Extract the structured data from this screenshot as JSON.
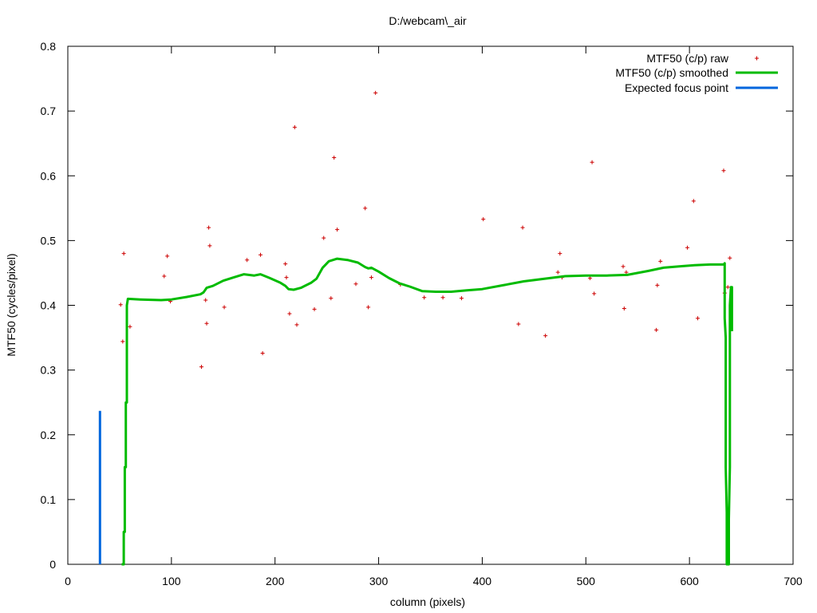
{
  "chart_data": {
    "type": "scatter",
    "title": "D:/webcam\\_air",
    "xlabel": "column (pixels)",
    "ylabel": "MTF50 (cycles/pixel)",
    "xlim": [
      0,
      700
    ],
    "ylim": [
      0,
      0.8
    ],
    "xticks": [
      0,
      100,
      200,
      300,
      400,
      500,
      600,
      700
    ],
    "yticks": [
      0,
      0.1,
      0.2,
      0.3,
      0.4,
      0.5,
      0.6,
      0.7,
      0.8
    ],
    "xtick_labels": [
      "0",
      "100",
      "200",
      "300",
      "400",
      "500",
      "600",
      "700"
    ],
    "ytick_labels": [
      "0",
      "0.1",
      "0.2",
      "0.3",
      "0.4",
      "0.5",
      "0.6",
      "0.7",
      "0.8"
    ],
    "grid": false,
    "legend_position": "top-right",
    "series": [
      {
        "name": "MTF50 (c/p) raw",
        "style": "points",
        "marker": "+",
        "color": "#cc0000",
        "points": [
          [
            51,
            0.401
          ],
          [
            53,
            0.344
          ],
          [
            54,
            0.48
          ],
          [
            60,
            0.367
          ],
          [
            93,
            0.445
          ],
          [
            96,
            0.476
          ],
          [
            99,
            0.406
          ],
          [
            129,
            0.305
          ],
          [
            133,
            0.408
          ],
          [
            134,
            0.372
          ],
          [
            136,
            0.52
          ],
          [
            137,
            0.492
          ],
          [
            151,
            0.397
          ],
          [
            173,
            0.47
          ],
          [
            186,
            0.478
          ],
          [
            188,
            0.326
          ],
          [
            210,
            0.464
          ],
          [
            211,
            0.443
          ],
          [
            214,
            0.387
          ],
          [
            219,
            0.675
          ],
          [
            221,
            0.37
          ],
          [
            238,
            0.394
          ],
          [
            247,
            0.504
          ],
          [
            254,
            0.411
          ],
          [
            257,
            0.628
          ],
          [
            260,
            0.517
          ],
          [
            278,
            0.433
          ],
          [
            287,
            0.55
          ],
          [
            290,
            0.397
          ],
          [
            293,
            0.443
          ],
          [
            297,
            0.728
          ],
          [
            321,
            0.432
          ],
          [
            344,
            0.412
          ],
          [
            362,
            0.412
          ],
          [
            380,
            0.411
          ],
          [
            401,
            0.533
          ],
          [
            435,
            0.371
          ],
          [
            439,
            0.52
          ],
          [
            461,
            0.353
          ],
          [
            473,
            0.451
          ],
          [
            475,
            0.48
          ],
          [
            477,
            0.443
          ],
          [
            504,
            0.442
          ],
          [
            506,
            0.621
          ],
          [
            508,
            0.418
          ],
          [
            536,
            0.46
          ],
          [
            537,
            0.395
          ],
          [
            539,
            0.451
          ],
          [
            568,
            0.362
          ],
          [
            569,
            0.431
          ],
          [
            572,
            0.468
          ],
          [
            598,
            0.489
          ],
          [
            604,
            0.561
          ],
          [
            608,
            0.38
          ],
          [
            633,
            0.608
          ],
          [
            634,
            0.419
          ],
          [
            637,
            0.428
          ],
          [
            639,
            0.473
          ]
        ]
      },
      {
        "name": "MTF50 (c/p) smoothed",
        "style": "line",
        "color": "#00bb00",
        "points": [
          [
            52,
            0
          ],
          [
            54,
            0
          ],
          [
            54,
            0.05
          ],
          [
            55,
            0.05
          ],
          [
            55,
            0.15
          ],
          [
            56,
            0.15
          ],
          [
            56,
            0.25
          ],
          [
            57,
            0.25
          ],
          [
            57,
            0.4
          ],
          [
            58,
            0.41
          ],
          [
            70,
            0.409
          ],
          [
            90,
            0.408
          ],
          [
            100,
            0.409
          ],
          [
            115,
            0.413
          ],
          [
            128,
            0.417
          ],
          [
            131,
            0.42
          ],
          [
            134,
            0.427
          ],
          [
            140,
            0.43
          ],
          [
            150,
            0.438
          ],
          [
            160,
            0.443
          ],
          [
            170,
            0.448
          ],
          [
            180,
            0.446
          ],
          [
            186,
            0.448
          ],
          [
            195,
            0.442
          ],
          [
            205,
            0.435
          ],
          [
            210,
            0.43
          ],
          [
            213,
            0.425
          ],
          [
            218,
            0.424
          ],
          [
            225,
            0.427
          ],
          [
            235,
            0.435
          ],
          [
            240,
            0.441
          ],
          [
            246,
            0.458
          ],
          [
            252,
            0.468
          ],
          [
            260,
            0.472
          ],
          [
            270,
            0.47
          ],
          [
            280,
            0.466
          ],
          [
            287,
            0.459
          ],
          [
            290,
            0.457
          ],
          [
            293,
            0.458
          ],
          [
            300,
            0.452
          ],
          [
            310,
            0.442
          ],
          [
            320,
            0.434
          ],
          [
            330,
            0.429
          ],
          [
            342,
            0.422
          ],
          [
            355,
            0.421
          ],
          [
            370,
            0.421
          ],
          [
            385,
            0.423
          ],
          [
            400,
            0.425
          ],
          [
            420,
            0.431
          ],
          [
            440,
            0.437
          ],
          [
            460,
            0.441
          ],
          [
            480,
            0.445
          ],
          [
            500,
            0.446
          ],
          [
            520,
            0.446
          ],
          [
            540,
            0.447
          ],
          [
            560,
            0.453
          ],
          [
            575,
            0.458
          ],
          [
            590,
            0.46
          ],
          [
            605,
            0.462
          ],
          [
            620,
            0.463
          ],
          [
            633,
            0.463
          ],
          [
            634,
            0.465
          ],
          [
            634,
            0.38
          ],
          [
            635,
            0.35
          ],
          [
            635,
            0.15
          ],
          [
            636,
            0.08
          ],
          [
            636,
            0
          ],
          [
            638,
            0
          ],
          [
            638,
            0.07
          ],
          [
            639,
            0.15
          ],
          [
            639,
            0.4
          ],
          [
            640,
            0.428
          ],
          [
            641,
            0.428
          ],
          [
            641,
            0.36
          ]
        ]
      },
      {
        "name": "Expected focus point",
        "style": "line",
        "color": "#0066dd",
        "points": [
          [
            31,
            0
          ],
          [
            31,
            0.237
          ]
        ]
      }
    ]
  }
}
